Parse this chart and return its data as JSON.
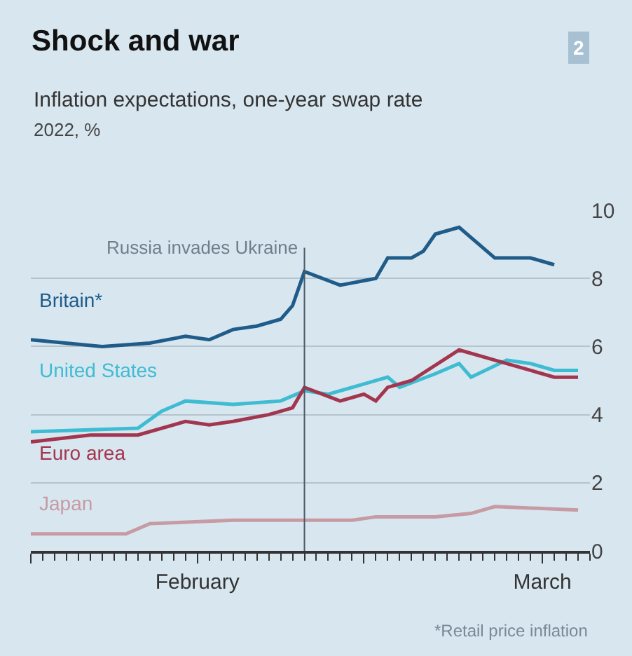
{
  "chart_data": {
    "type": "line",
    "title": "Shock and war",
    "subtitle": "Inflation expectations, one-year swap rate",
    "ylabel": "2022, %",
    "xlim": [
      "2022-02-01",
      "2022-03-20"
    ],
    "xticks": [
      {
        "value": "2022-02-01",
        "label": null
      },
      {
        "value": "2022-02-15",
        "label": "February"
      },
      {
        "value": "2022-03-01",
        "label": null
      },
      {
        "value": "2022-03-16",
        "label": "March"
      }
    ],
    "ylim": [
      0,
      10
    ],
    "yticks": [
      0,
      2,
      4,
      6,
      8,
      10
    ],
    "grid": "y",
    "legend": false,
    "marker": "none",
    "line_style": "solid",
    "ref_lines": [
      {
        "axis": "x",
        "value": "2022-02-24",
        "label": "Russia invades Ukraine",
        "color": "#4a5a66"
      }
    ],
    "annotations": [
      "2",
      "*Retail price inflation"
    ],
    "series": [
      {
        "name": "Britain*",
        "color": "#1f5c89",
        "x": [
          "2022-02-01",
          "2022-02-07",
          "2022-02-11",
          "2022-02-14",
          "2022-02-16",
          "2022-02-18",
          "2022-02-20",
          "2022-02-22",
          "2022-02-23",
          "2022-02-24",
          "2022-02-27",
          "2022-03-02",
          "2022-03-03",
          "2022-03-05",
          "2022-03-06",
          "2022-03-07",
          "2022-03-09",
          "2022-03-12",
          "2022-03-15",
          "2022-03-17"
        ],
        "values": [
          6.2,
          6.0,
          6.1,
          6.3,
          6.2,
          6.5,
          6.6,
          6.8,
          7.2,
          8.2,
          7.8,
          8.0,
          8.6,
          8.6,
          8.8,
          9.3,
          9.5,
          8.6,
          8.6,
          8.4
        ]
      },
      {
        "name": "United States",
        "color": "#3ebcd2",
        "x": [
          "2022-02-01",
          "2022-02-10",
          "2022-02-12",
          "2022-02-14",
          "2022-02-18",
          "2022-02-22",
          "2022-02-24",
          "2022-02-26",
          "2022-03-01",
          "2022-03-03",
          "2022-03-04",
          "2022-03-07",
          "2022-03-09",
          "2022-03-10",
          "2022-03-13",
          "2022-03-15",
          "2022-03-17",
          "2022-03-19"
        ],
        "values": [
          3.5,
          3.6,
          4.1,
          4.4,
          4.3,
          4.4,
          4.7,
          4.6,
          4.9,
          5.1,
          4.8,
          5.2,
          5.5,
          5.1,
          5.6,
          5.5,
          5.3,
          5.3
        ]
      },
      {
        "name": "Euro area",
        "color": "#a3364f",
        "x": [
          "2022-02-01",
          "2022-02-06",
          "2022-02-10",
          "2022-02-14",
          "2022-02-16",
          "2022-02-18",
          "2022-02-21",
          "2022-02-23",
          "2022-02-24",
          "2022-02-27",
          "2022-03-01",
          "2022-03-02",
          "2022-03-03",
          "2022-03-05",
          "2022-03-09",
          "2022-03-12",
          "2022-03-15",
          "2022-03-17",
          "2022-03-19"
        ],
        "values": [
          3.2,
          3.4,
          3.4,
          3.8,
          3.7,
          3.8,
          4.0,
          4.2,
          4.8,
          4.4,
          4.6,
          4.4,
          4.8,
          5.0,
          5.9,
          5.6,
          5.3,
          5.1,
          5.1
        ]
      },
      {
        "name": "Japan",
        "color": "#c79ba3",
        "x": [
          "2022-02-01",
          "2022-02-09",
          "2022-02-11",
          "2022-02-18",
          "2022-02-28",
          "2022-03-02",
          "2022-03-07",
          "2022-03-10",
          "2022-03-12",
          "2022-03-19"
        ],
        "values": [
          0.5,
          0.5,
          0.8,
          0.9,
          0.9,
          1.0,
          1.0,
          1.1,
          1.3,
          1.2
        ]
      }
    ]
  }
}
